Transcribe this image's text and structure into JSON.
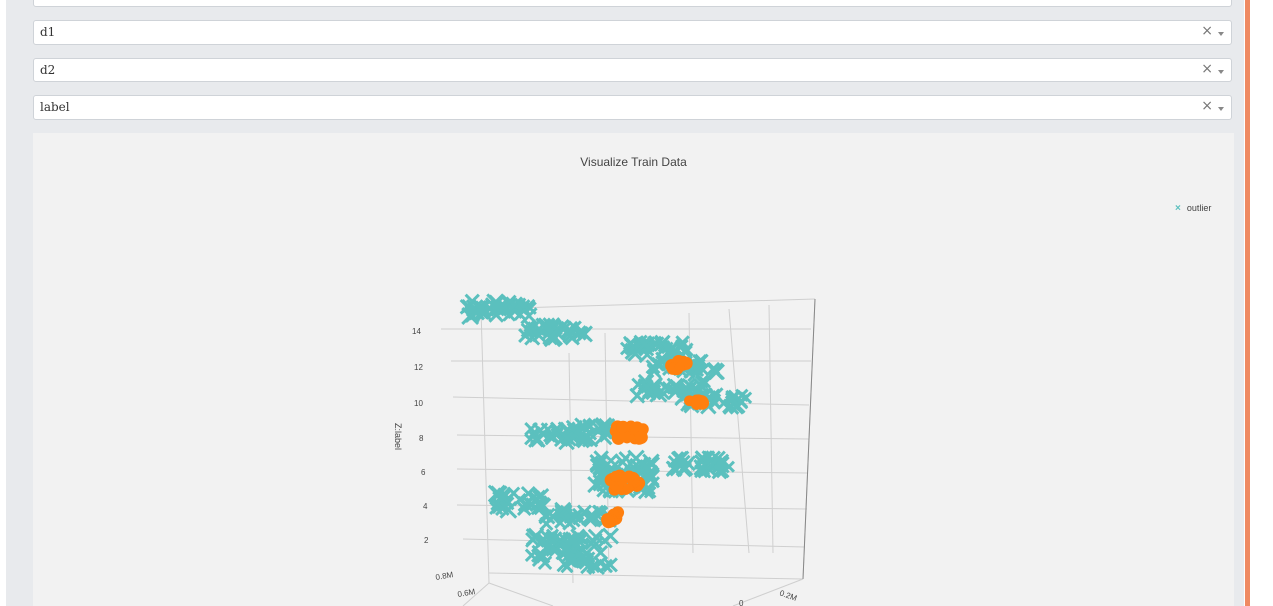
{
  "selects": [
    {
      "value": "",
      "clear": "×"
    },
    {
      "value": "d1",
      "clear": "×"
    },
    {
      "value": "d2",
      "clear": "×"
    },
    {
      "value": "label",
      "clear": "×"
    }
  ],
  "plot": {
    "title": "Visualize Train Data",
    "legend": [
      {
        "name": "outlier",
        "symbol": "×",
        "color": "#5bc0be"
      }
    ],
    "z_axis_label": "Z:label",
    "z_ticks": [
      "14",
      "12",
      "10",
      "8",
      "6",
      "4",
      "2"
    ],
    "x_ticks": [
      "0.8M",
      "0.6M"
    ],
    "y_ticks": [
      "0.2M",
      "0"
    ],
    "colors": {
      "teal": "#5bc0be",
      "orange": "#ff7f0e",
      "accent": "#ef8a62"
    }
  }
}
